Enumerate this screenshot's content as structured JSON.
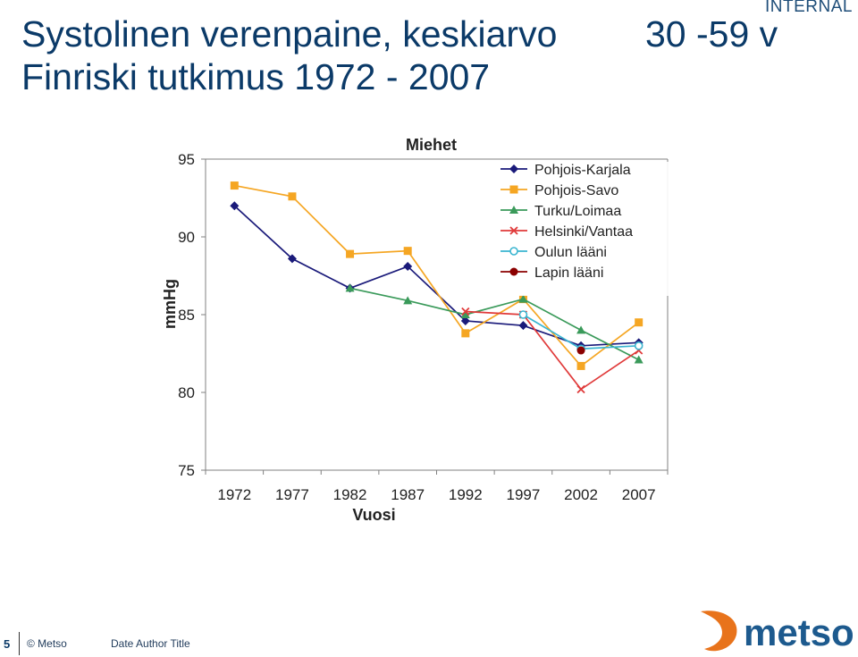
{
  "header": {
    "badge": "INTERNAL",
    "title_line1": "Systolinen verenpaine, keskiarvo",
    "title_line2": "Finriski tutkimus 1972 - 2007",
    "age_range": "30 -59 v"
  },
  "footer": {
    "page_number": "5",
    "copyright": "© Metso",
    "meta": "Date Author Title",
    "logo_text": "metso"
  },
  "colors": {
    "title": "#0b3a68",
    "logo_orange": "#e8731b",
    "logo_text": "#1d5a8e"
  },
  "chart_data": {
    "type": "line",
    "title": "Miehet",
    "xlabel": "Vuosi",
    "ylabel": "mmHg",
    "categories": [
      "1972",
      "1977",
      "1982",
      "1987",
      "1992",
      "1997",
      "2002",
      "2007"
    ],
    "ylim": [
      75,
      95
    ],
    "yticks": [
      "75",
      "80",
      "85",
      "90",
      "95"
    ],
    "legend_position": "top-right",
    "grid": false,
    "series": [
      {
        "name": "Pohjois-Karjala",
        "color": "#1a1a7a",
        "marker": "diamond",
        "values": [
          92.0,
          88.6,
          86.7,
          88.1,
          84.6,
          84.3,
          83.0,
          83.2
        ]
      },
      {
        "name": "Pohjois-Savo",
        "color": "#f5a623",
        "marker": "square",
        "values": [
          93.3,
          92.6,
          88.9,
          89.1,
          83.8,
          86.0,
          81.7,
          84.5
        ]
      },
      {
        "name": "Turku/Loimaa",
        "color": "#3a9a5a",
        "marker": "triangle",
        "values": [
          null,
          null,
          86.7,
          85.9,
          85.0,
          86.0,
          84.0,
          82.1
        ]
      },
      {
        "name": "Helsinki/Vantaa",
        "color": "#e03a3a",
        "marker": "x",
        "values": [
          null,
          null,
          null,
          null,
          85.2,
          85.0,
          80.2,
          82.7
        ]
      },
      {
        "name": "Oulun lääni",
        "color": "#3ab5d0",
        "marker": "circle-open",
        "values": [
          null,
          null,
          null,
          null,
          null,
          85.0,
          82.8,
          83.0
        ]
      },
      {
        "name": "Lapin lääni",
        "color": "#8b0000",
        "marker": "circle",
        "values": [
          null,
          null,
          null,
          null,
          null,
          null,
          82.7,
          null
        ]
      }
    ]
  }
}
